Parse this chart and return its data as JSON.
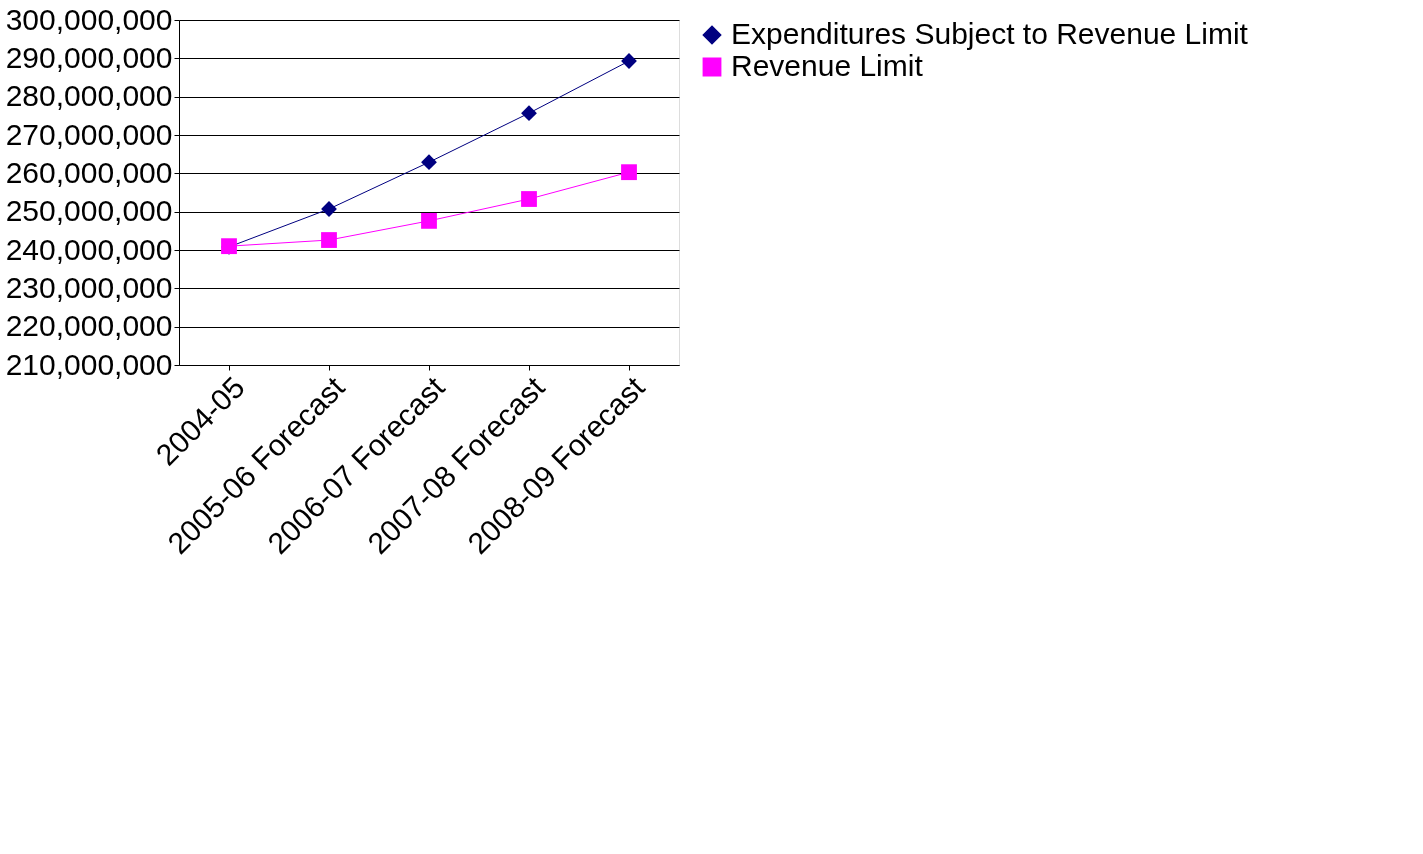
{
  "chart_data": {
    "type": "line",
    "categories": [
      "2004-05",
      "2005-06 Forecast",
      "2006-07 Forecast",
      "2007-08 Forecast",
      "2008-09 Forecast"
    ],
    "series": [
      {
        "name": "Expenditures Subject to Revenue Limit",
        "color": "#000080",
        "marker": "diamond",
        "values": [
          240800000,
          250700000,
          262900000,
          275700000,
          289300000
        ]
      },
      {
        "name": "Revenue Limit",
        "color": "#ff00ff",
        "marker": "square",
        "values": [
          241000000,
          242600000,
          247600000,
          253300000,
          260300000
        ]
      }
    ],
    "ylim": [
      210000000,
      300000000
    ],
    "yticks": [
      {
        "value": 210000000,
        "label": "210,000,000"
      },
      {
        "value": 220000000,
        "label": "220,000,000"
      },
      {
        "value": 230000000,
        "label": "230,000,000"
      },
      {
        "value": 240000000,
        "label": "240,000,000"
      },
      {
        "value": 250000000,
        "label": "250,000,000"
      },
      {
        "value": 260000000,
        "label": "260,000,000"
      },
      {
        "value": 270000000,
        "label": "270,000,000"
      },
      {
        "value": 280000000,
        "label": "280,000,000"
      },
      {
        "value": 290000000,
        "label": "290,000,000"
      },
      {
        "value": 300000000,
        "label": "300,000,000"
      }
    ],
    "grid": "y",
    "legend": "right",
    "line_style": "solid"
  }
}
